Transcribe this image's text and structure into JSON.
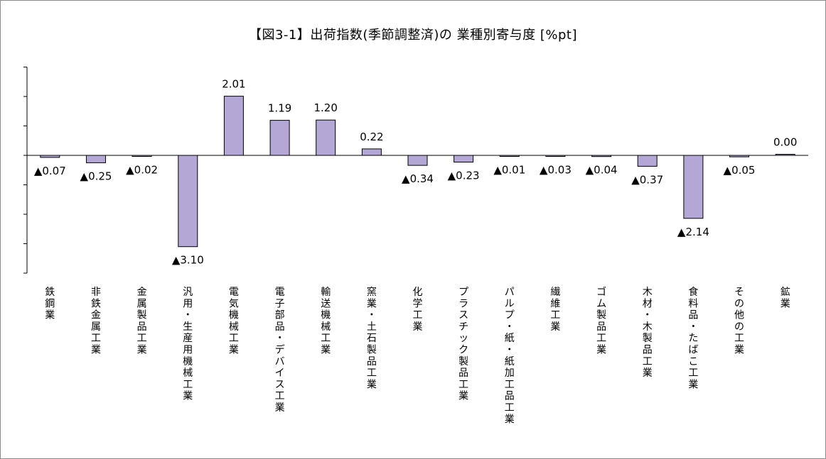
{
  "chart_data": {
    "type": "bar",
    "title": "【図3-1】出荷指数(季節調整済)の 業種別寄与度 [%pt]",
    "xlabel": "",
    "ylabel": "",
    "ylim": [
      -4,
      3
    ],
    "grid": false,
    "legend": "none",
    "bar_color": "#b4a7d6",
    "bar_edge_color": "#000000",
    "categories": [
      "鉄鋼業",
      "非鉄金属工業",
      "金属製品工業",
      "汎用・生産用機械工業",
      "電気機械工業",
      "電子部品・デバイス工業",
      "輸送機械工業",
      "窯業・土石製品工業",
      "化学工業",
      "プラスチック製品工業",
      "パルプ・紙・紙加工品工業",
      "繊維工業",
      "ゴム製品工業",
      "木材・木製品工業",
      "食料品・たばこ工業",
      "その他の工業",
      "鉱業"
    ],
    "values": [
      -0.07,
      -0.25,
      -0.02,
      -3.1,
      2.01,
      1.19,
      1.2,
      0.22,
      -0.34,
      -0.23,
      -0.01,
      -0.03,
      -0.04,
      -0.37,
      -2.14,
      -0.05,
      0.0
    ],
    "data_labels": [
      "▲0.07",
      "▲0.25",
      "▲0.02",
      "▲3.10",
      "2.01",
      "1.19",
      "1.20",
      "0.22",
      "▲0.34",
      "▲0.23",
      "▲0.01",
      "▲0.03",
      "▲0.04",
      "▲0.37",
      "▲2.14",
      "▲0.05",
      "0.00"
    ]
  }
}
